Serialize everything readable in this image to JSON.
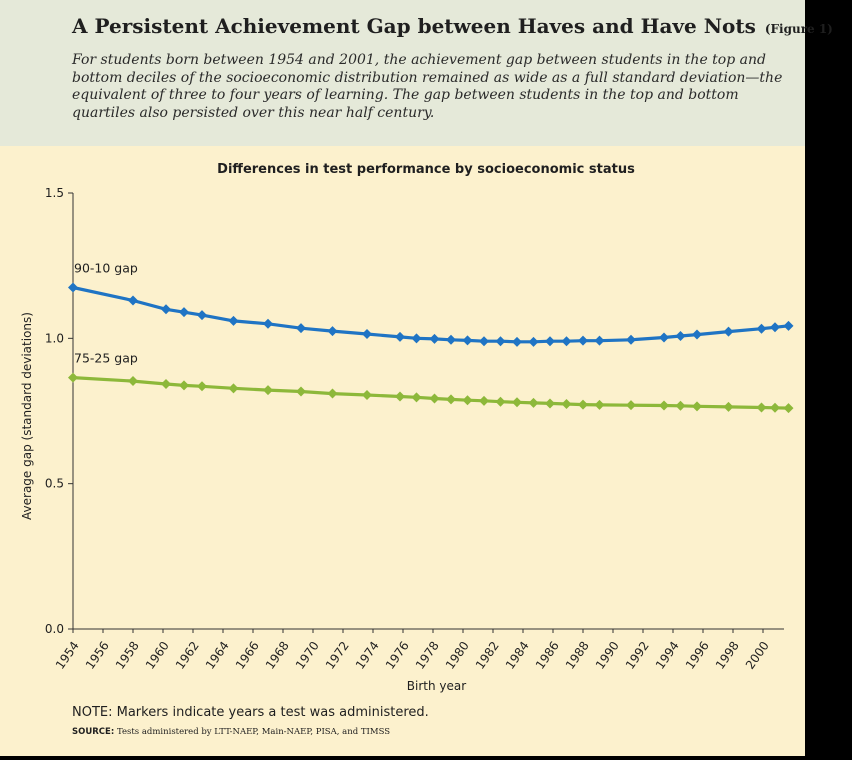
{
  "header": {
    "title": "A Persistent Achievement Gap between Haves and Have Nots",
    "figure_tag": "(Figure 1)",
    "subtitle": "For students born between 1954 and 2001, the achievement gap between students in the top and bottom deciles of the socioeconomic distribution remained as wide as a full standard deviation—the equivalent of three to four years of learning. The gap between students in the top and bottom quartiles also persisted over this near half century."
  },
  "footer": {
    "note": "NOTE: Markers indicate years a test was administered.",
    "source_label": "SOURCE:",
    "source_text": "Tests administered by LTT-NAEP, Main-NAEP, PISA, and TIMSS"
  },
  "colors": {
    "background": "#fcf1cd",
    "header_background": "#e5e9d9",
    "series_90_10": "#1f74c4",
    "series_75_25": "#8db83a"
  },
  "chart_data": {
    "type": "line",
    "title": "Differences in test performance by socioeconomic status",
    "xlabel": "Birth year",
    "ylabel": "Average gap (standard deviations)",
    "xlim": [
      1953.5,
      2000.5
    ],
    "ylim": [
      0,
      1.5
    ],
    "yticks": [
      0,
      0.5,
      1.0,
      1.5
    ],
    "ytick_labels": [
      "0.0",
      "0.5",
      "1.0",
      "1.5"
    ],
    "xticks": [
      1954,
      1956,
      1958,
      1960,
      1962,
      1964,
      1966,
      1968,
      1970,
      1972,
      1974,
      1976,
      1978,
      1980,
      1982,
      1984,
      1986,
      1988,
      1990,
      1992,
      1994,
      1996,
      1998,
      2000
    ],
    "grid": false,
    "series": [
      {
        "name": "90-10 gap",
        "color": "#1f74c4",
        "points": [
          [
            1954,
            1.175
          ],
          [
            1958,
            1.13
          ],
          [
            1960.2,
            1.1
          ],
          [
            1961.4,
            1.09
          ],
          [
            1962.6,
            1.08
          ],
          [
            1964.7,
            1.06
          ],
          [
            1967,
            1.05
          ],
          [
            1969.2,
            1.035
          ],
          [
            1971.3,
            1.025
          ],
          [
            1973.6,
            1.015
          ],
          [
            1975.8,
            1.005
          ],
          [
            1976.9,
            1.0
          ],
          [
            1978.1,
            0.998
          ],
          [
            1979.2,
            0.995
          ],
          [
            1980.3,
            0.993
          ],
          [
            1981.4,
            0.99
          ],
          [
            1982.5,
            0.99
          ],
          [
            1983.6,
            0.988
          ],
          [
            1984.7,
            0.988
          ],
          [
            1985.8,
            0.99
          ],
          [
            1986.9,
            0.99
          ],
          [
            1988,
            0.992
          ],
          [
            1989.1,
            0.992
          ],
          [
            1991.2,
            0.995
          ],
          [
            1993.4,
            1.003
          ],
          [
            1994.5,
            1.008
          ],
          [
            1995.6,
            1.013
          ],
          [
            1997.7,
            1.023
          ],
          [
            1999.9,
            1.033
          ],
          [
            2000.8,
            1.038
          ],
          [
            2001.7,
            1.043
          ]
        ]
      },
      {
        "name": "75-25 gap",
        "color": "#8db83a",
        "points": [
          [
            1954,
            0.865
          ],
          [
            1958,
            0.853
          ],
          [
            1960.2,
            0.843
          ],
          [
            1961.4,
            0.838
          ],
          [
            1962.6,
            0.835
          ],
          [
            1964.7,
            0.828
          ],
          [
            1967,
            0.822
          ],
          [
            1969.2,
            0.817
          ],
          [
            1971.3,
            0.81
          ],
          [
            1973.6,
            0.805
          ],
          [
            1975.8,
            0.8
          ],
          [
            1976.9,
            0.797
          ],
          [
            1978.1,
            0.793
          ],
          [
            1979.2,
            0.79
          ],
          [
            1980.3,
            0.787
          ],
          [
            1981.4,
            0.785
          ],
          [
            1982.5,
            0.782
          ],
          [
            1983.6,
            0.78
          ],
          [
            1984.7,
            0.778
          ],
          [
            1985.8,
            0.776
          ],
          [
            1986.9,
            0.774
          ],
          [
            1988,
            0.772
          ],
          [
            1989.1,
            0.771
          ],
          [
            1991.2,
            0.77
          ],
          [
            1993.4,
            0.769
          ],
          [
            1994.5,
            0.768
          ],
          [
            1995.6,
            0.766
          ],
          [
            1997.7,
            0.764
          ],
          [
            1999.9,
            0.762
          ],
          [
            2000.8,
            0.761
          ],
          [
            2001.7,
            0.76
          ]
        ]
      }
    ]
  }
}
